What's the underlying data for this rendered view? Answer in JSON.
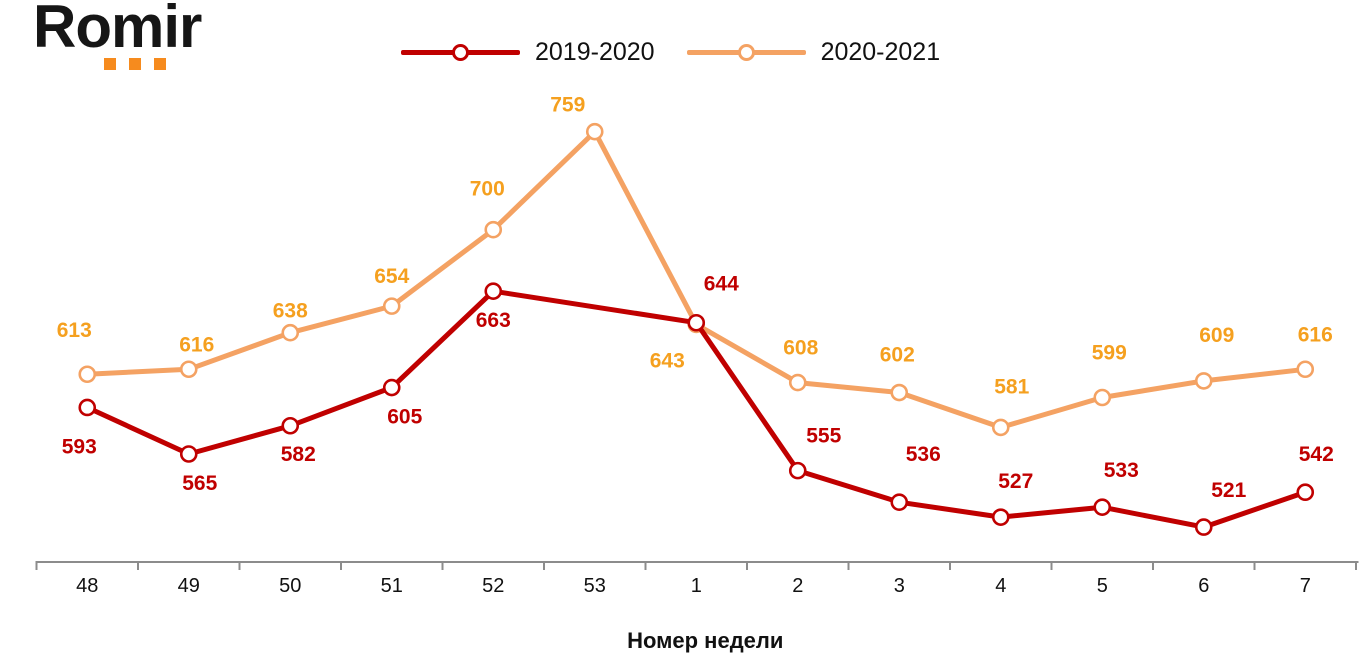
{
  "logo": {
    "text": "Romir",
    "dot_color": "#F68B1E"
  },
  "chart_data": {
    "type": "line",
    "title": "",
    "categories": [
      "48",
      "49",
      "50",
      "51",
      "52",
      "53",
      "1",
      "2",
      "3",
      "4",
      "5",
      "6",
      "7"
    ],
    "xlabel": "Номер недели",
    "ylim": [
      500,
      760
    ],
    "grid": false,
    "legend_position": "top-center",
    "axis_color": "#8C8C8C",
    "text_color": "#111111",
    "marker_style": "open-circle",
    "series": [
      {
        "name": "2019-2020",
        "color": "#C00000",
        "label_color": "#C00000",
        "values": [
          593,
          565,
          582,
          605,
          663,
          null,
          644,
          555,
          536,
          527,
          533,
          521,
          542
        ],
        "label_dx": [
          -8,
          11,
          8,
          13,
          0,
          null,
          25,
          26,
          24,
          15,
          19,
          25,
          11
        ],
        "label_dy": [
          39,
          29,
          28,
          29,
          29,
          null,
          -39,
          -35,
          -48,
          -36,
          -37,
          -37,
          -38
        ]
      },
      {
        "name": "2020-2021",
        "color": "#F4A263",
        "label_color": "#F5A01F",
        "values": [
          613,
          616,
          638,
          654,
          700,
          759,
          643,
          608,
          602,
          581,
          599,
          609,
          616
        ],
        "label_dx": [
          -13,
          8,
          0,
          0,
          -6,
          -27,
          -29,
          3,
          -2,
          11,
          7,
          13,
          10
        ],
        "label_dy": [
          -44,
          -25,
          -22,
          -30,
          -41,
          -27,
          36,
          -35,
          -38,
          -41,
          -45,
          -46,
          -35
        ]
      }
    ]
  }
}
